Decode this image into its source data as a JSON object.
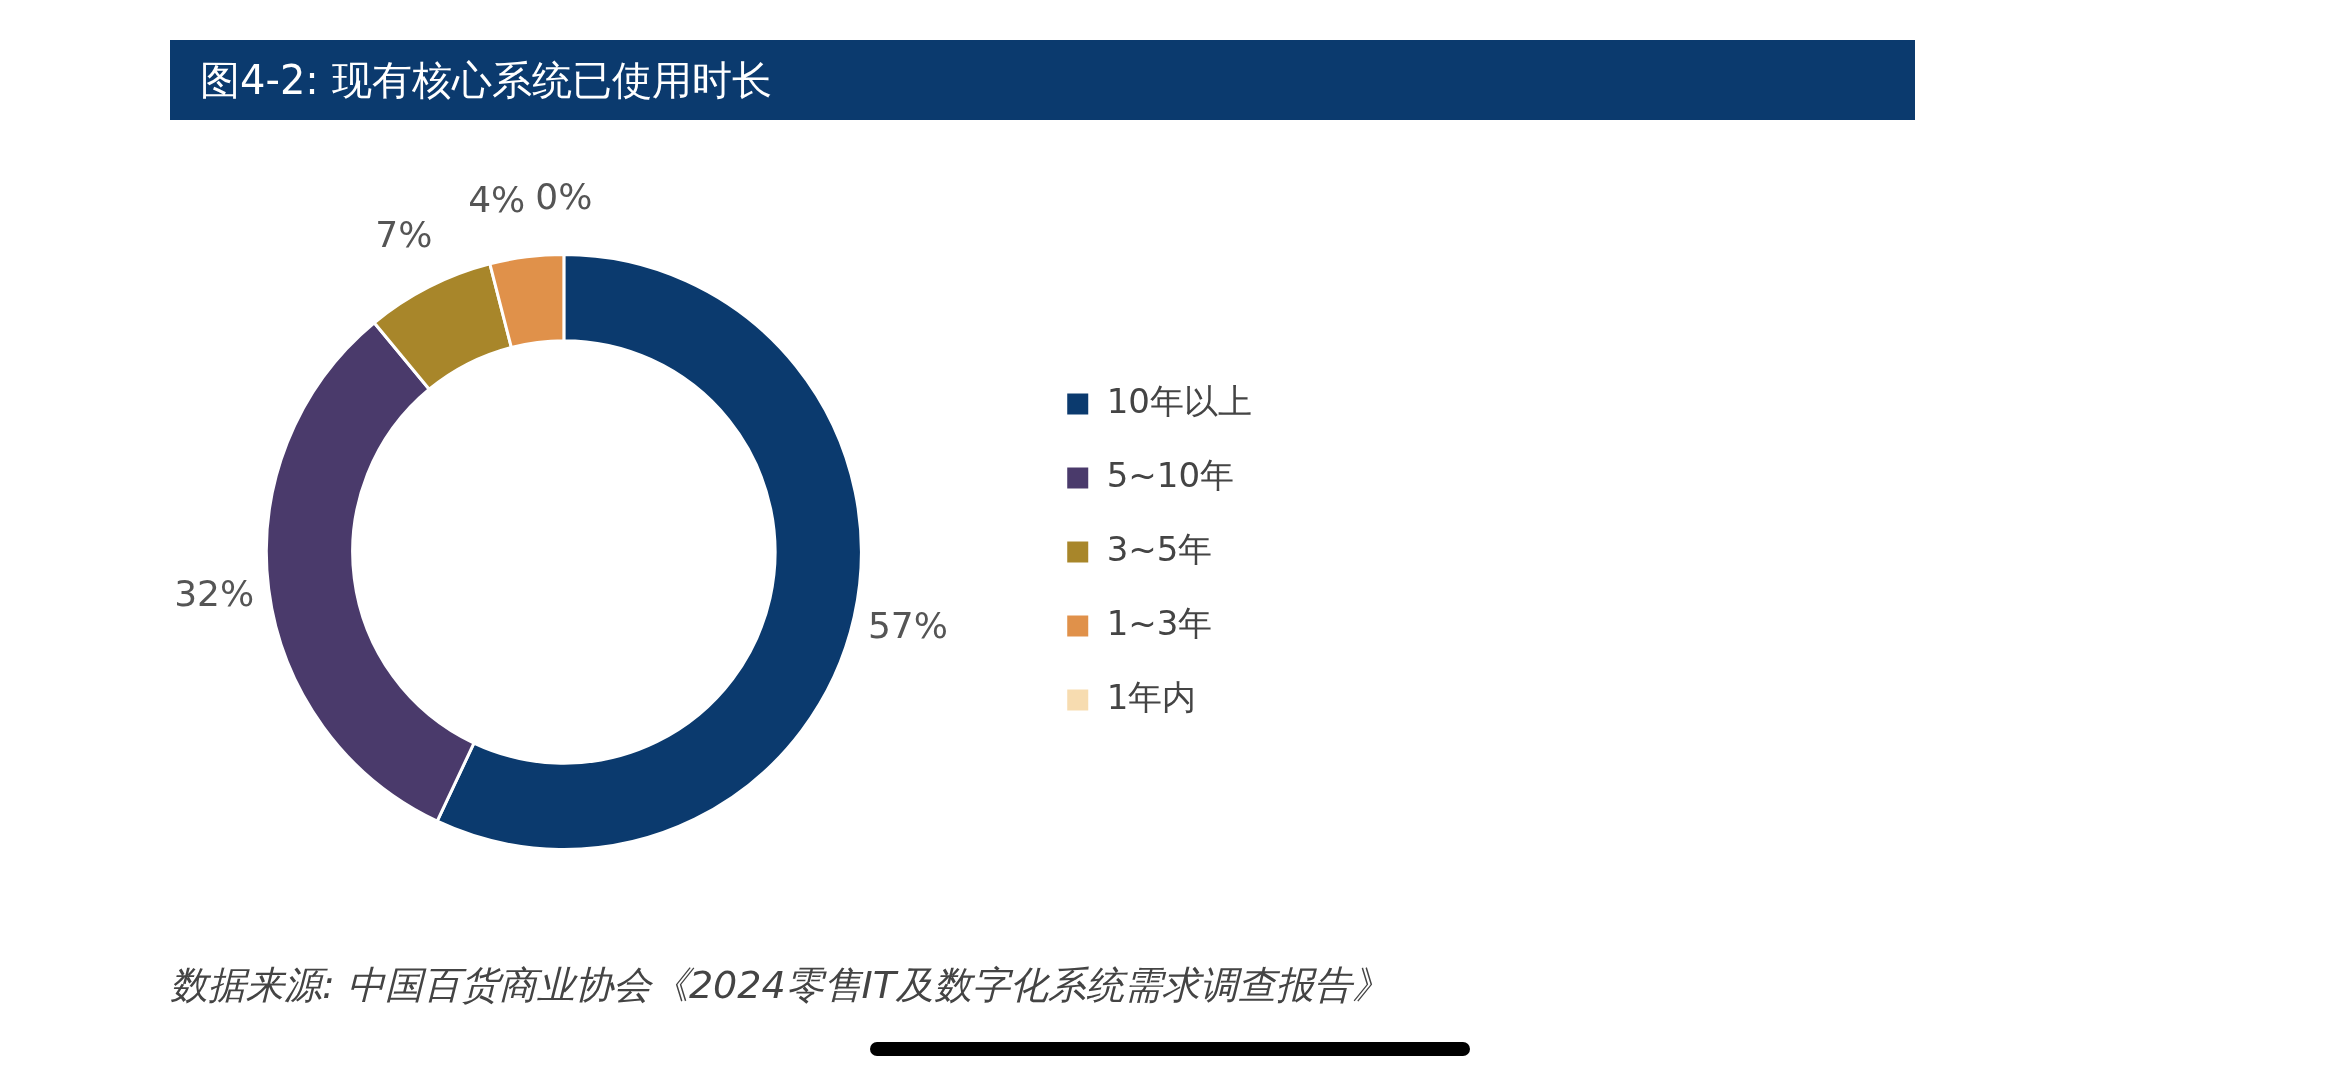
{
  "chart_data": {
    "type": "donut",
    "title": "图4-2: 现有核心系统已使用时长",
    "categories": [
      "10年以上",
      "5~10年",
      "3~5年",
      "1~3年",
      "1年内"
    ],
    "values": [
      57,
      32,
      7,
      4,
      0
    ],
    "value_labels": [
      "57%",
      "32%",
      "7%",
      "4%",
      "0%"
    ],
    "colors": [
      "#0b3a6e",
      "#4a3a6b",
      "#a8862a",
      "#e0914a",
      "#f7dcb0"
    ],
    "legend": "right",
    "annotations": [
      "数据来源: 中国百货商业协会《2024零售IT及数字化系统需求调查报告》"
    ]
  }
}
